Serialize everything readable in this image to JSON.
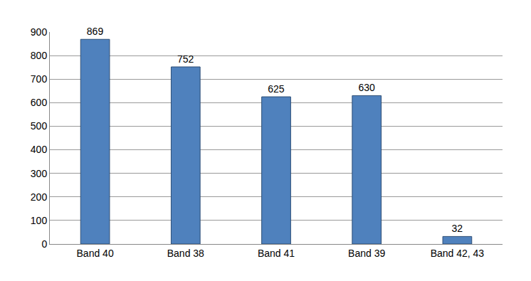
{
  "chart_data": {
    "type": "bar",
    "categories": [
      "Band 40",
      "Band 38",
      "Band 41",
      "Band 39",
      "Band 42, 43"
    ],
    "values": [
      869,
      752,
      625,
      630,
      32
    ],
    "color": "#4f81bd",
    "ylim": [
      0,
      900
    ],
    "yticks": [
      0,
      100,
      200,
      300,
      400,
      500,
      600,
      700,
      800,
      900
    ],
    "grid": true,
    "data_labels": true
  }
}
